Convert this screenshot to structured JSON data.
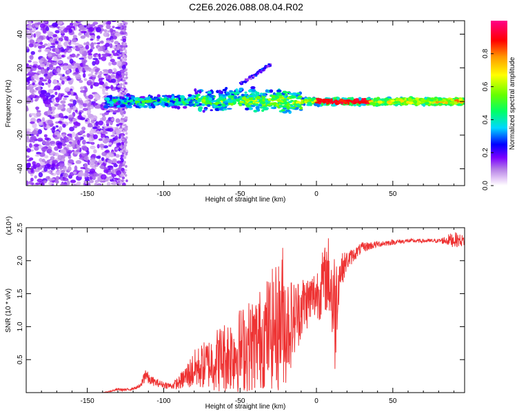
{
  "title": "C2E6.2026.088.08.04.R02",
  "chart_data": [
    {
      "type": "heatmap",
      "title": "C2E6.2026.088.08.04.R02",
      "xlabel": "Height of straight line (km)",
      "ylabel": "Frequency (Hz)",
      "xlim": [
        -190,
        97
      ],
      "ylim": [
        -50,
        48
      ],
      "xticks": [
        -150,
        -100,
        -50,
        0,
        50
      ],
      "yticks": [
        -40,
        -20,
        0,
        20,
        40
      ],
      "colorbar": {
        "label": "Normalized spectral amplitude",
        "range": [
          0,
          1
        ],
        "ticks": [
          0.0,
          0.2,
          0.4,
          0.6,
          0.8
        ],
        "tick_labels": [
          "0.0",
          "0.2",
          "0.4",
          "0.6",
          "0.8"
        ],
        "colors": [
          "#ffffff",
          "#e6ccf7",
          "#b47ee6",
          "#7a00ff",
          "#0000ff",
          "#00d8ff",
          "#00ff66",
          "#66ff00",
          "#ffff00",
          "#ff9900",
          "#ff0000",
          "#ff0088"
        ]
      },
      "features": [
        {
          "name": "diffuse scatter",
          "x_range": [
            -190,
            -125
          ],
          "f_range": [
            -50,
            48
          ],
          "amplitude": 0.15
        },
        {
          "name": "carrier band",
          "x_range": [
            -138,
            97
          ],
          "f_center": 0,
          "amplitude_start": 0.35,
          "amplitude_end": 0.75
        },
        {
          "name": "strong segment",
          "x_range": [
            0,
            35
          ],
          "f_center": 0,
          "amplitude": 0.95
        },
        {
          "name": "drift streak",
          "x_range": [
            -50,
            -30
          ],
          "f_range": [
            10,
            22
          ],
          "amplitude": 0.2
        }
      ]
    },
    {
      "type": "line",
      "title": "",
      "xlabel": "Height of straight line (km)",
      "ylabel": "SNR (10 * v/v)",
      "y_multiplier_label": "(x10⁴)",
      "y_units": "x10^4",
      "xlim": [
        -190,
        97
      ],
      "ylim": [
        0,
        2.5
      ],
      "xticks": [
        -150,
        -100,
        -50,
        0,
        50
      ],
      "yticks": [
        0.5,
        1.0,
        1.5,
        2.0,
        2.5
      ],
      "ytick_labels": [
        "0.5",
        "1.0",
        "1.5",
        "2.0",
        "2.5"
      ],
      "series": [
        {
          "name": "SNR",
          "color": "#ee3333",
          "x": [
            -190,
            -140,
            -135,
            -130,
            -125,
            -120,
            -115,
            -112,
            -110,
            -105,
            -100,
            -95,
            -90,
            -85,
            -80,
            -75,
            -70,
            -65,
            -60,
            -55,
            -50,
            -45,
            -40,
            -35,
            -30,
            -25,
            -22,
            -20,
            -15,
            -10,
            -5,
            0,
            3,
            5,
            8,
            10,
            12,
            15,
            20,
            25,
            30,
            40,
            50,
            60,
            70,
            80,
            90,
            97
          ],
          "values": [
            0.0,
            0.0,
            0.02,
            0.05,
            0.04,
            0.06,
            0.1,
            0.3,
            0.2,
            0.15,
            0.12,
            0.1,
            0.15,
            0.25,
            0.35,
            0.4,
            0.45,
            0.5,
            0.55,
            0.6,
            0.65,
            0.7,
            0.75,
            0.85,
            0.95,
            1.0,
            1.2,
            1.0,
            1.1,
            1.3,
            1.4,
            1.5,
            1.6,
            1.7,
            1.8,
            1.5,
            1.2,
            1.8,
            2.0,
            2.1,
            2.2,
            2.25,
            2.28,
            2.3,
            2.3,
            2.3,
            2.32,
            2.3
          ],
          "spread": [
            0.0,
            0.0,
            0.01,
            0.02,
            0.02,
            0.02,
            0.03,
            0.15,
            0.08,
            0.06,
            0.05,
            0.05,
            0.1,
            0.2,
            0.3,
            0.35,
            0.4,
            0.5,
            0.55,
            0.6,
            0.65,
            0.7,
            0.75,
            0.8,
            0.9,
            1.0,
            1.1,
            0.9,
            0.6,
            0.5,
            0.4,
            0.4,
            0.5,
            0.5,
            0.6,
            0.8,
            1.0,
            0.3,
            0.15,
            0.1,
            0.08,
            0.05,
            0.04,
            0.03,
            0.03,
            0.03,
            0.12,
            0.08
          ]
        }
      ]
    }
  ]
}
